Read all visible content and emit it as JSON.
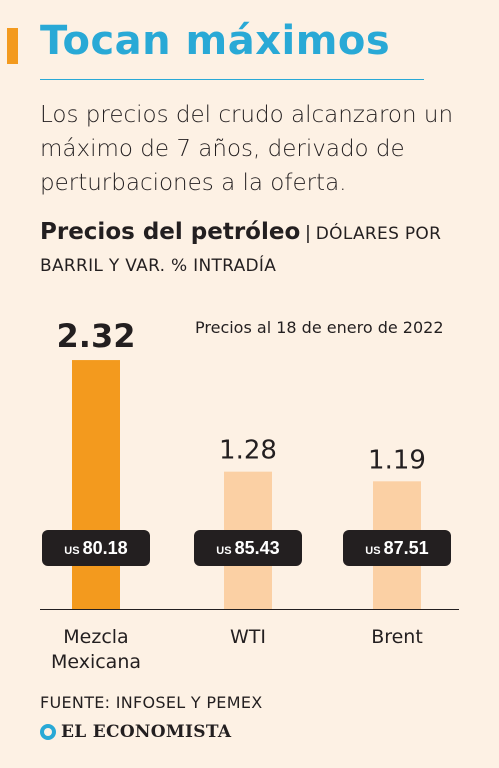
{
  "header": {
    "title": "Tocan máximos",
    "subtitle": "Los precios del crudo alcanzaron un máximo de 7 años, derivado de perturbaciones a la oferta."
  },
  "chart_heading": {
    "main": "Precios del petróleo",
    "separator": "|",
    "unit": "DÓLARES POR BARRIL Y VAR. % INTRADÍA"
  },
  "date_note": "Precios al 18 de enero de 2022",
  "chart_data": {
    "type": "bar",
    "categories": [
      "Mezcla Mexicana",
      "WTI",
      "Brent"
    ],
    "values": [
      2.32,
      1.28,
      1.19
    ],
    "value_labels": [
      "2.32",
      "1.28",
      "1.19"
    ],
    "prices": [
      80.18,
      85.43,
      87.51
    ],
    "price_labels": [
      "80.18",
      "85.43",
      "87.51"
    ],
    "currency_prefix": "US",
    "highlight_index": 0,
    "colors": {
      "highlight": "#f39a1e",
      "normal": "#fbd0a4",
      "badge": "#231f20",
      "badge_text": "#ffffff",
      "axis": "#231f20"
    },
    "category_lines": [
      [
        "Mezcla",
        "Mexicana"
      ],
      [
        "WTI"
      ],
      [
        "Brent"
      ]
    ],
    "grid": false,
    "legend": "none"
  },
  "footer": {
    "source": "FUENTE: INFOSEL Y PEMEX",
    "brand": "EL ECONOMISTA"
  },
  "icons": {
    "brand_mark": "logo-circle-icon"
  }
}
